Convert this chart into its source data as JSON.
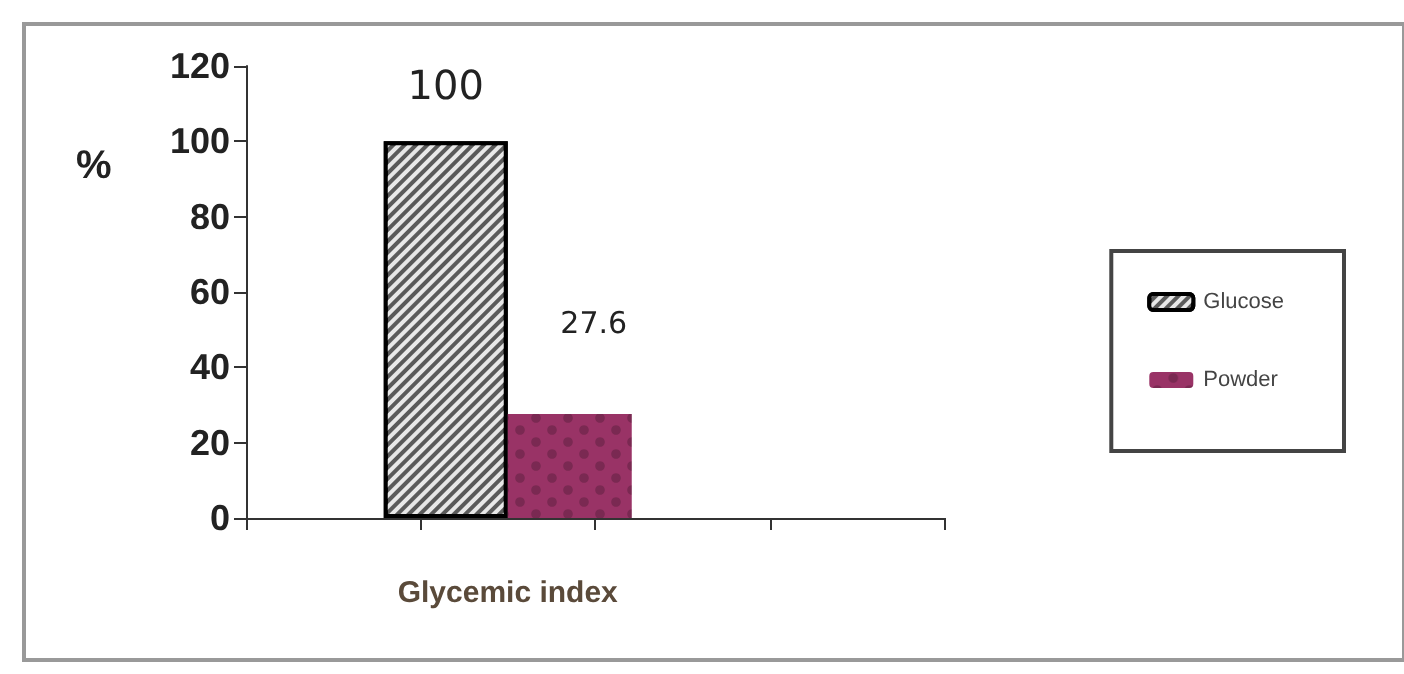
{
  "chart_data": {
    "type": "bar",
    "categories": [
      null,
      "Glycemic index",
      null,
      null
    ],
    "series": [
      {
        "name": "Glucose",
        "color": "#5a5a5a",
        "values": [
          null,
          100,
          null,
          null
        ]
      },
      {
        "name": "Powder",
        "color": "#993366",
        "values": [
          null,
          27.6,
          null,
          null
        ]
      }
    ],
    "ylabel": "%",
    "ylim": [
      0,
      120
    ],
    "yticks": [
      0,
      20,
      40,
      60,
      80,
      100,
      120
    ],
    "data_labels": true,
    "legend": "right",
    "grid": false
  }
}
